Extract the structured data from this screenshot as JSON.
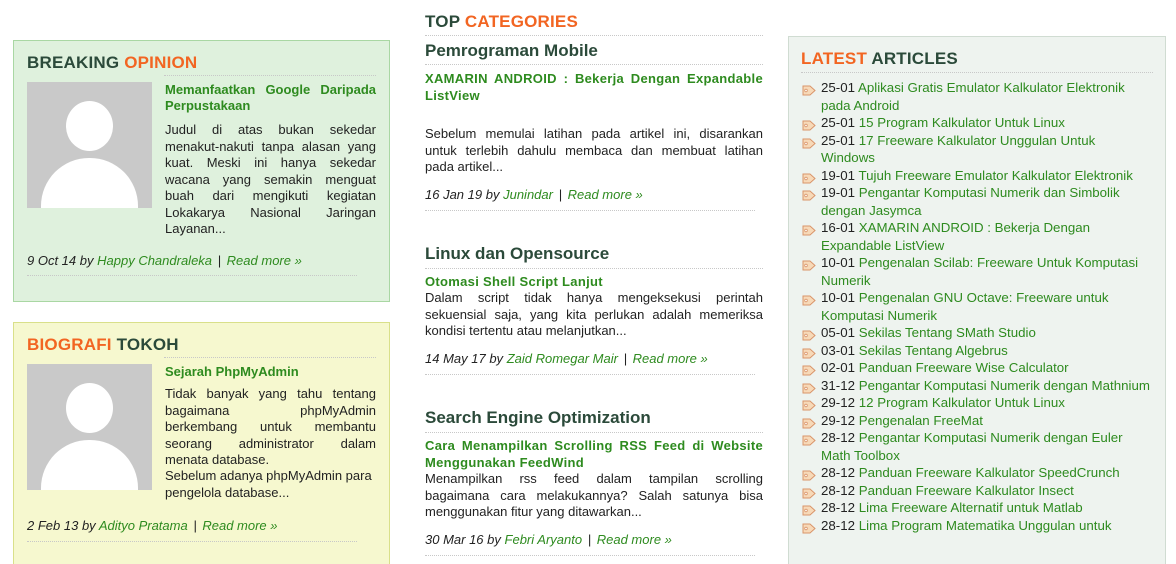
{
  "breaking": {
    "title_a": "BREAKING",
    "title_b": "OPINION",
    "post_title": "Memanfaatkan Google Daripada Perpustakaan",
    "excerpt": "Judul di atas bukan sekedar menakut-nakuti tanpa alasan yang kuat. Meski ini hanya sekedar wacana yang semakin menguat buah dari mengikuti kegiatan Lokakarya Nasional Jaringan Layanan...",
    "date": "9 Oct 14",
    "by": "by",
    "author": "Happy Chandraleka",
    "sep": "|",
    "read_more": "Read more »"
  },
  "biografi": {
    "title_a": "BIOGRAFI",
    "title_b": "TOKOH",
    "post_title": "Sejarah PhpMyAdmin",
    "excerpt": "Tidak banyak yang tahu tentang bagaimana phpMyAdmin berkembang untuk membantu seorang administrator dalam menata database.",
    "excerpt2": "Sebelum adanya phpMyAdmin para pengelola database...",
    "date": "2 Feb 13",
    "by": "by",
    "author": "Adityo Pratama",
    "sep": "|",
    "read_more": "Read more »"
  },
  "top_categories": {
    "title_a": "TOP",
    "title_b": "CATEGORIES",
    "sections": [
      {
        "name": "Pemrograman Mobile",
        "post_title": "XAMARIN ANDROID : Bekerja Dengan Expandable ListView",
        "excerpt": "Sebelum memulai latihan pada artikel ini, disarankan untuk terlebih dahulu membaca dan membuat latihan pada artikel...",
        "date": "16 Jan 19",
        "by": "by",
        "author": "Junindar",
        "sep": "|",
        "read_more": "Read more »"
      },
      {
        "name": "Linux dan Opensource",
        "post_title": "Otomasi Shell Script Lanjut",
        "excerpt": "Dalam script tidak hanya mengeksekusi perintah sekuensial saja, yang kita perlukan adalah memeriksa kondisi tertentu atau melanjutkan...",
        "date": "14 May 17",
        "by": "by",
        "author": "Zaid Romegar Mair",
        "sep": "|",
        "read_more": "Read more »"
      },
      {
        "name": "Search Engine Optimization",
        "post_title": "Cara Menampilkan Scrolling RSS Feed di Website Menggunakan FeedWind",
        "excerpt": "Menampilkan rss feed dalam tampilan scrolling bagaimana cara melakukannya? Salah satunya bisa menggunakan fitur yang ditawarkan...",
        "date": "30 Mar 16",
        "by": "by",
        "author": "Febri Aryanto",
        "sep": "|",
        "read_more": "Read more »"
      }
    ]
  },
  "latest": {
    "title_a": "LATEST",
    "title_b": "ARTICLES",
    "icon": "tag-icon",
    "items": [
      {
        "date": "25-01",
        "title": "Aplikasi Gratis Emulator Kalkulator Elektronik pada Android"
      },
      {
        "date": "25-01",
        "title": "15 Program Kalkulator Untuk Linux"
      },
      {
        "date": "25-01",
        "title": "17 Freeware Kalkulator Unggulan Untuk Windows"
      },
      {
        "date": "19-01",
        "title": "Tujuh Freeware Emulator Kalkulator Elektronik"
      },
      {
        "date": "19-01",
        "title": "Pengantar Komputasi Numerik dan Simbolik dengan Jasymca"
      },
      {
        "date": "16-01",
        "title": "XAMARIN ANDROID : Bekerja Dengan Expandable ListView"
      },
      {
        "date": "10-01",
        "title": "Pengenalan Scilab: Freeware Untuk Komputasi Numerik"
      },
      {
        "date": "10-01",
        "title": "Pengenalan GNU Octave: Freeware untuk Komputasi Numerik"
      },
      {
        "date": "05-01",
        "title": "Sekilas Tentang SMath Studio"
      },
      {
        "date": "03-01",
        "title": "Sekilas Tentang Algebrus"
      },
      {
        "date": "02-01",
        "title": "Panduan Freeware Wise Calculator"
      },
      {
        "date": "31-12",
        "title": "Pengantar Komputasi Numerik dengan Mathnium"
      },
      {
        "date": "29-12",
        "title": "12 Program Kalkulator Untuk Linux"
      },
      {
        "date": "29-12",
        "title": "Pengenalan FreeMat"
      },
      {
        "date": "28-12",
        "title": "Pengantar Komputasi Numerik dengan Euler Math Toolbox"
      },
      {
        "date": "28-12",
        "title": "Panduan Freeware Kalkulator SpeedCrunch"
      },
      {
        "date": "28-12",
        "title": "Panduan Freeware Kalkulator Insect"
      },
      {
        "date": "28-12",
        "title": "Lima Freeware Alternatif untuk Matlab"
      },
      {
        "date": "28-12",
        "title": "Lima Program Matematika Unggulan untuk"
      }
    ]
  }
}
